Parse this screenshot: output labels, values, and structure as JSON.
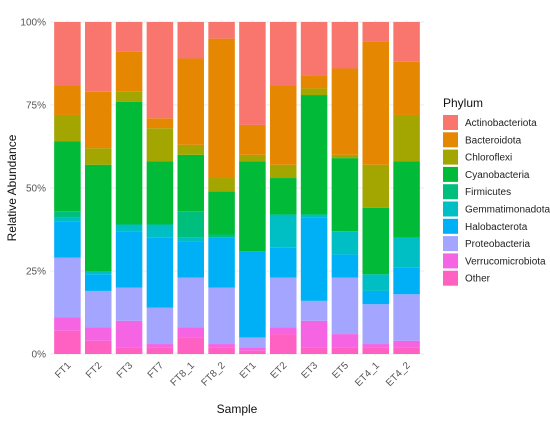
{
  "chart_data": {
    "type": "bar",
    "stacked": true,
    "xlabel": "Sample",
    "ylabel": "Relative Abundance",
    "ylim": [
      0,
      1
    ],
    "y_ticks": [
      {
        "value": 0,
        "label": "0%"
      },
      {
        "value": 0.25,
        "label": "25%"
      },
      {
        "value": 0.5,
        "label": "50%"
      },
      {
        "value": 0.75,
        "label": "75%"
      },
      {
        "value": 1,
        "label": "100%"
      }
    ],
    "grid": true,
    "legend_title": "Phylum",
    "legend_position": "right",
    "categories": [
      "FT1",
      "FT2",
      "FT3",
      "FT7",
      "FT8_1",
      "FT8_2",
      "ET1",
      "ET2",
      "ET3",
      "ET5",
      "ET4_1",
      "ET4_2"
    ],
    "series": [
      {
        "name": "Other",
        "color": "#FF61C3",
        "values": [
          0.07,
          0.04,
          0.02,
          0.02,
          0.05,
          0.02,
          0.01,
          0.06,
          0.02,
          0.02,
          0.02,
          0.02
        ]
      },
      {
        "name": "Verrucomicrobiota",
        "color": "#F564E3",
        "values": [
          0.04,
          0.04,
          0.08,
          0.01,
          0.03,
          0.01,
          0.01,
          0.02,
          0.08,
          0.04,
          0.01,
          0.02
        ]
      },
      {
        "name": "Proteobacteria",
        "color": "#A3A5FF",
        "values": [
          0.18,
          0.11,
          0.1,
          0.11,
          0.15,
          0.17,
          0.03,
          0.15,
          0.06,
          0.17,
          0.12,
          0.14
        ]
      },
      {
        "name": "Halobacterota",
        "color": "#00B0F6",
        "values": [
          0.11,
          0.05,
          0.17,
          0.21,
          0.11,
          0.15,
          0.26,
          0.09,
          0.25,
          0.07,
          0.04,
          0.08
        ]
      },
      {
        "name": "Gemmatimonadota",
        "color": "#00BFC4",
        "values": [
          0.01,
          0.01,
          0.02,
          0.04,
          0.01,
          0.0,
          0.0,
          0.1,
          0.01,
          0.07,
          0.05,
          0.09
        ]
      },
      {
        "name": "Firmicutes",
        "color": "#00BF7D",
        "values": [
          0.02,
          0.0,
          0.0,
          0.0,
          0.08,
          0.01,
          0.0,
          0.0,
          0.0,
          0.0,
          0.0,
          0.0
        ]
      },
      {
        "name": "Cyanobacteria",
        "color": "#00BA38",
        "values": [
          0.21,
          0.32,
          0.37,
          0.19,
          0.17,
          0.13,
          0.27,
          0.11,
          0.36,
          0.22,
          0.2,
          0.23
        ]
      },
      {
        "name": "Chloroflexi",
        "color": "#A3A500",
        "values": [
          0.08,
          0.05,
          0.03,
          0.1,
          0.03,
          0.04,
          0.02,
          0.04,
          0.02,
          0.01,
          0.13,
          0.14
        ]
      },
      {
        "name": "Bacteroidota",
        "color": "#E58700",
        "values": [
          0.09,
          0.17,
          0.12,
          0.03,
          0.26,
          0.42,
          0.09,
          0.24,
          0.04,
          0.26,
          0.37,
          0.16
        ]
      },
      {
        "name": "Actinobacteriota",
        "color": "#F8766D",
        "values": [
          0.19,
          0.21,
          0.09,
          0.29,
          0.11,
          0.05,
          0.31,
          0.19,
          0.16,
          0.14,
          0.06,
          0.12
        ]
      }
    ],
    "legend_order": [
      "Actinobacteriota",
      "Bacteroidota",
      "Chloroflexi",
      "Cyanobacteria",
      "Firmicutes",
      "Gemmatimonadota",
      "Halobacterota",
      "Proteobacteria",
      "Verrucomicrobiota",
      "Other"
    ]
  }
}
